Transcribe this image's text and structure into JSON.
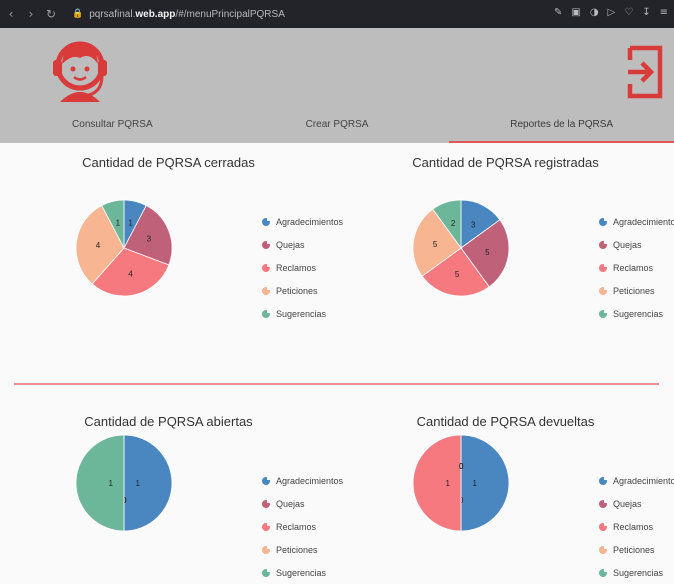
{
  "browser": {
    "url_prefix": "pqrsafinal.",
    "url_domain": "web.app",
    "url_path": "/#/menuPrincipalPQRSA"
  },
  "header": {
    "tabs": [
      {
        "label": "Consultar PQRSA"
      },
      {
        "label": "Crear PQRSA"
      },
      {
        "label": "Reportes de la PQRSA"
      }
    ],
    "active_tab": 2
  },
  "colors": {
    "accent": "#e15656",
    "Agradecimientos": "#4a86c0",
    "Quejas": "#c0617a",
    "Reclamos": "#f67980",
    "Peticiones": "#f7b592",
    "Sugerencias": "#6cb79a"
  },
  "chart_data": [
    {
      "type": "pie",
      "title": "Cantidad de PQRSA cerradas",
      "categories": [
        "Agradecimientos",
        "Quejas",
        "Reclamos",
        "Peticiones",
        "Sugerencias"
      ],
      "values": [
        1,
        3,
        4,
        4,
        1
      ]
    },
    {
      "type": "pie",
      "title": "Cantidad de PQRSA registradas",
      "categories": [
        "Agradecimientos",
        "Quejas",
        "Reclamos",
        "Peticiones",
        "Sugerencias"
      ],
      "values": [
        3,
        5,
        5,
        5,
        2
      ]
    },
    {
      "type": "pie",
      "title": "Cantidad de PQRSA abiertas",
      "categories": [
        "Agradecimientos",
        "Quejas",
        "Reclamos",
        "Peticiones",
        "Sugerencias"
      ],
      "values": [
        1,
        0,
        0,
        0,
        1
      ]
    },
    {
      "type": "pie",
      "title": "Cantidad de PQRSA devueltas",
      "categories": [
        "Agradecimientos",
        "Quejas",
        "Reclamos",
        "Peticiones",
        "Sugerencias"
      ],
      "values": [
        1,
        0,
        1,
        0,
        0
      ]
    }
  ]
}
